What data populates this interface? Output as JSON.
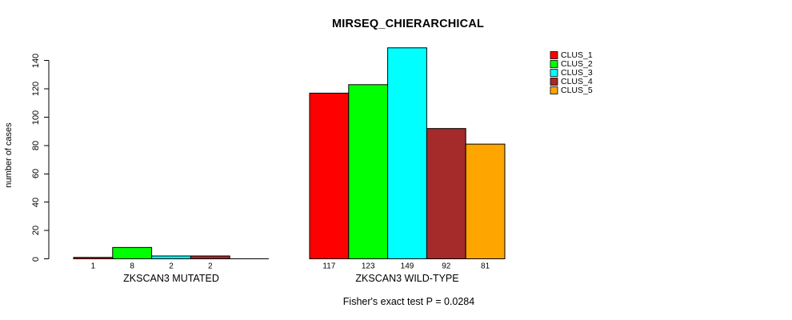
{
  "chart_data": {
    "type": "bar",
    "title": "MIRSEQ_CHIERARCHICAL",
    "ylabel": "number of cases",
    "xlabel": "",
    "ylim": [
      0,
      150
    ],
    "y_ticks": [
      0,
      20,
      40,
      60,
      80,
      100,
      120,
      140
    ],
    "grid": false,
    "background": "#FFFFFF",
    "bar_border_color": "#000000",
    "categories": [
      "ZKSCAN3 MUTATED",
      "ZKSCAN3 WILD-TYPE"
    ],
    "series": [
      {
        "name": "CLUS_1",
        "color": "#FF0000",
        "values": [
          1,
          117
        ]
      },
      {
        "name": "CLUS_2",
        "color": "#00FF00",
        "values": [
          8,
          123
        ]
      },
      {
        "name": "CLUS_3",
        "color": "#00FFFF",
        "values": [
          2,
          149
        ]
      },
      {
        "name": "CLUS_4",
        "color": "#A52A2A",
        "values": [
          2,
          92
        ]
      },
      {
        "name": "CLUS_5",
        "color": "#FFA500",
        "values": [
          0,
          81
        ]
      }
    ],
    "bar_value_labels": [
      [
        "1",
        "8",
        "2",
        "2",
        ""
      ],
      [
        "117",
        "123",
        "149",
        "92",
        "81"
      ]
    ],
    "legend": {
      "position": "right",
      "entries": [
        "CLUS_1",
        "CLUS_2",
        "CLUS_3",
        "CLUS_4",
        "CLUS_5"
      ]
    },
    "annotation": "Fisher's exact test P = 0.0284"
  }
}
